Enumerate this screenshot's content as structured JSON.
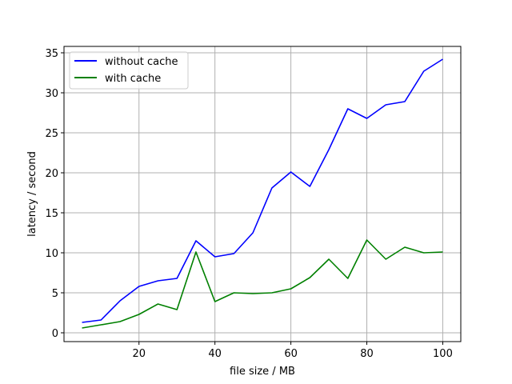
{
  "chart_data": {
    "type": "line",
    "xlabel": "file size / MB",
    "ylabel": "latency / second",
    "xlim": [
      0.25,
      104.75
    ],
    "ylim": [
      -1.1,
      35.8
    ],
    "xticks": [
      20,
      40,
      60,
      80,
      100
    ],
    "yticks": [
      0,
      5,
      10,
      15,
      20,
      25,
      30,
      35
    ],
    "grid": true,
    "legend_position": "upper-left",
    "x": [
      5,
      10,
      15,
      20,
      25,
      30,
      35,
      40,
      45,
      50,
      55,
      60,
      65,
      70,
      75,
      80,
      85,
      90,
      95,
      100
    ],
    "series": [
      {
        "name": "without cache",
        "color": "#0000ff",
        "values": [
          1.3,
          1.6,
          4.0,
          5.8,
          6.5,
          6.8,
          11.5,
          9.5,
          9.9,
          12.5,
          18.1,
          20.1,
          18.3,
          22.9,
          28.0,
          26.8,
          28.5,
          28.9,
          32.7,
          34.2
        ]
      },
      {
        "name": "with cache",
        "color": "#008000",
        "values": [
          0.6,
          1.0,
          1.4,
          2.3,
          3.6,
          2.9,
          10.1,
          3.9,
          5.0,
          4.9,
          5.0,
          5.5,
          6.9,
          9.2,
          6.8,
          11.6,
          9.2,
          10.7,
          10.0,
          10.1
        ]
      }
    ]
  }
}
